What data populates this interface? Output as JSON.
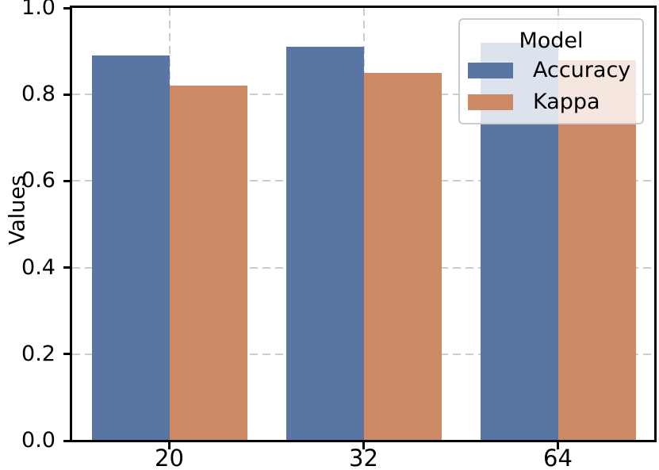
{
  "chart_data": {
    "type": "bar",
    "title": "",
    "xlabel": "",
    "ylabel": "Values",
    "categories": [
      "20",
      "32",
      "64"
    ],
    "series": [
      {
        "name": "Accuracy",
        "color": "#5875A3",
        "values": [
          0.89,
          0.91,
          0.92
        ]
      },
      {
        "name": "Kappa",
        "color": "#CC8963",
        "values": [
          0.82,
          0.85,
          0.88
        ]
      }
    ],
    "ylim": [
      0.0,
      1.0
    ],
    "yticks": [
      0.0,
      0.2,
      0.4,
      0.6,
      0.8,
      1.0
    ],
    "ytick_labels": [
      "0.0",
      "0.2",
      "0.4",
      "0.6",
      "0.8",
      "1.0"
    ],
    "grid": true,
    "grid_style": "dashed",
    "grid_color": "#cccccc",
    "spine_color": "#000000",
    "background_color": "#ffffff",
    "legend": {
      "title": "Model",
      "position": "upper-right",
      "background": "rgba(255,255,255,0.8)",
      "border_color": "#cccccc"
    }
  }
}
